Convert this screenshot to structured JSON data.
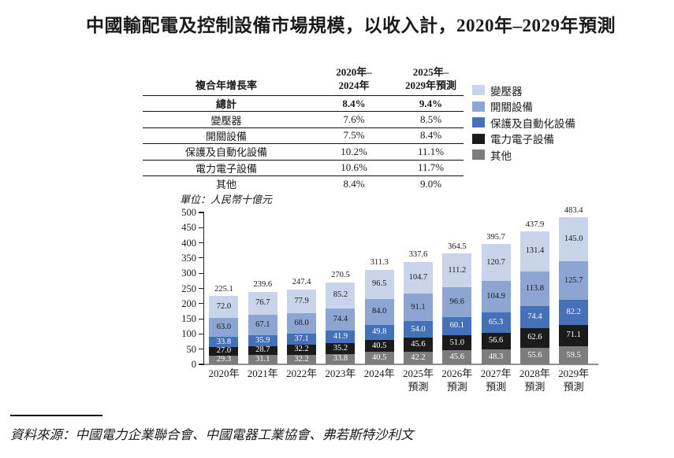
{
  "title": "中國輸配電及控制設備市場規模，以收入計，2020年–2029年預測",
  "cagr_table": {
    "header": [
      "複合年增長率",
      "2020年–\n2024年",
      "2025年–\n2029年預測"
    ],
    "rows": [
      {
        "label": "總計",
        "cagr_2020_2024": "8.4%",
        "cagr_2025_2029": "9.4%",
        "bold": true
      },
      {
        "label": "變壓器",
        "cagr_2020_2024": "7.6%",
        "cagr_2025_2029": "8.5%",
        "bold": false
      },
      {
        "label": "開關設備",
        "cagr_2020_2024": "7.5%",
        "cagr_2025_2029": "8.4%",
        "bold": false
      },
      {
        "label": "保護及自動化設備",
        "cagr_2020_2024": "10.2%",
        "cagr_2025_2029": "11.1%",
        "bold": false
      },
      {
        "label": "電力電子設備",
        "cagr_2020_2024": "10.6%",
        "cagr_2025_2029": "11.7%",
        "bold": false
      },
      {
        "label": "其他",
        "cagr_2020_2024": "8.4%",
        "cagr_2025_2029": "9.0%",
        "bold": false
      }
    ]
  },
  "legend": [
    {
      "label": "變壓器",
      "color": "#c8d4ea"
    },
    {
      "label": "開關設備",
      "color": "#8ca5d2"
    },
    {
      "label": "保護及自動化設備",
      "color": "#4571b8"
    },
    {
      "label": "電力電子設備",
      "color": "#1b1b1b"
    },
    {
      "label": "其他",
      "color": "#7d7d7d"
    }
  ],
  "chart_data": {
    "type": "bar",
    "stacked": true,
    "unit_label": "單位：人民幣十億元",
    "categories": [
      "2020年",
      "2021年",
      "2022年",
      "2023年",
      "2024年",
      "2025年預測",
      "2026年預測",
      "2027年預測",
      "2028年預測",
      "2029年預測"
    ],
    "totals": [
      225.1,
      239.6,
      247.4,
      270.5,
      311.3,
      337.6,
      364.5,
      395.7,
      437.9,
      483.4
    ],
    "series": [
      {
        "name": "變壓器",
        "color": "#c8d4ea",
        "label_color": "#1a1a1a",
        "values": [
          72.0,
          76.7,
          77.9,
          85.2,
          96.5,
          104.7,
          111.2,
          120.7,
          131.4,
          145.0
        ]
      },
      {
        "name": "開關設備",
        "color": "#8ca5d2",
        "label_color": "#1a1a1a",
        "values": [
          63.0,
          67.1,
          68.0,
          74.4,
          84.0,
          91.1,
          96.6,
          104.9,
          113.8,
          125.7
        ]
      },
      {
        "name": "保護及自動化設備",
        "color": "#4571b8",
        "label_color": "#ffffff",
        "values": [
          33.8,
          35.9,
          37.1,
          41.9,
          49.8,
          54.0,
          60.1,
          65.3,
          74.4,
          82.2
        ]
      },
      {
        "name": "電力電子設備",
        "color": "#1b1b1b",
        "label_color": "#ffffff",
        "values": [
          27.0,
          28.7,
          32.2,
          35.2,
          40.5,
          45.6,
          51.0,
          56.6,
          62.6,
          71.1
        ]
      },
      {
        "name": "其他",
        "color": "#7d7d7d",
        "label_color": "#ffffff",
        "values": [
          29.3,
          31.1,
          32.2,
          33.8,
          40.5,
          42.2,
          45.6,
          48.3,
          55.6,
          59.5
        ]
      }
    ],
    "ylim": [
      0,
      500
    ],
    "ytick_step": 50,
    "grid": false,
    "legend_position": "top-right",
    "stack_order": "first-series-on-top"
  },
  "source": "資料來源：中國電力企業聯合會、中國電器工業協會、弗若斯特沙利文"
}
